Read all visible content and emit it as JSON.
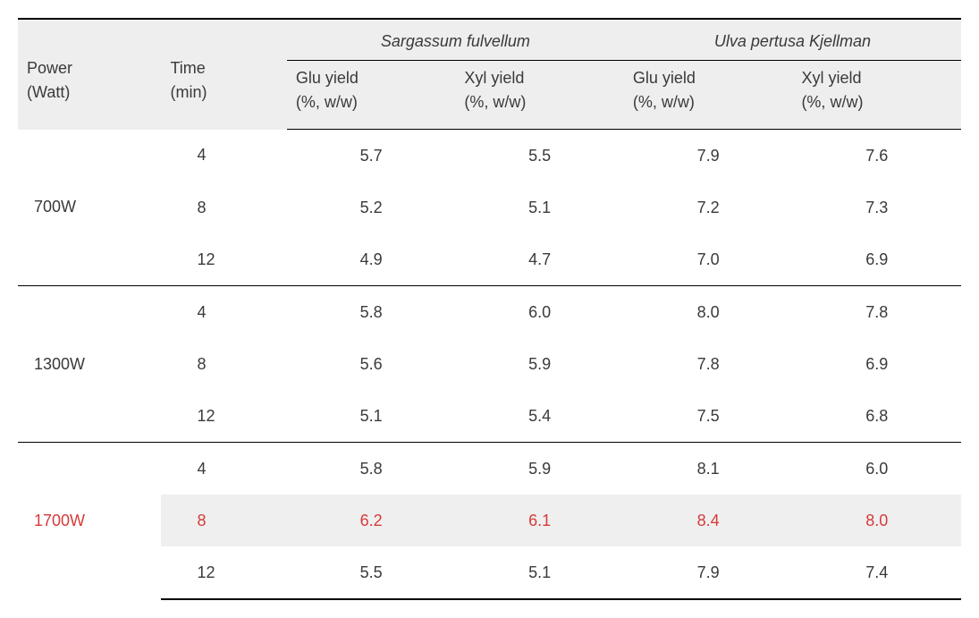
{
  "table": {
    "header": {
      "power_label_line1": "Power",
      "power_label_line2": "(Watt)",
      "time_label_line1": "Time",
      "time_label_line2": "(min)",
      "species": [
        {
          "name": "Sargassum fulvellum"
        },
        {
          "name": "Ulva pertusa Kjellman"
        }
      ],
      "sub_glu_line1": "Glu yield",
      "sub_glu_line2": "(%, w/w)",
      "sub_xyl_line1": "Xyl yield",
      "sub_xyl_line2": "(%, w/w)"
    },
    "groups": [
      {
        "power": "700W",
        "power_color": "#3a3a3a",
        "rows": [
          {
            "time": "4",
            "sf_glu": "5.7",
            "sf_xyl": "5.5",
            "up_glu": "7.9",
            "up_xyl": "7.6",
            "highlight": false
          },
          {
            "time": "8",
            "sf_glu": "5.2",
            "sf_xyl": "5.1",
            "up_glu": "7.2",
            "up_xyl": "7.3",
            "highlight": false
          },
          {
            "time": "12",
            "sf_glu": "4.9",
            "sf_xyl": "4.7",
            "up_glu": "7.0",
            "up_xyl": "6.9",
            "highlight": false
          }
        ]
      },
      {
        "power": "1300W",
        "power_color": "#3a3a3a",
        "rows": [
          {
            "time": "4",
            "sf_glu": "5.8",
            "sf_xyl": "6.0",
            "up_glu": "8.0",
            "up_xyl": "7.8",
            "highlight": false
          },
          {
            "time": "8",
            "sf_glu": "5.6",
            "sf_xyl": "5.9",
            "up_glu": "7.8",
            "up_xyl": "6.9",
            "highlight": false
          },
          {
            "time": "12",
            "sf_glu": "5.1",
            "sf_xyl": "5.4",
            "up_glu": "7.5",
            "up_xyl": "6.8",
            "highlight": false
          }
        ]
      },
      {
        "power": "1700W",
        "power_color": "#d63a3a",
        "rows": [
          {
            "time": "4",
            "sf_glu": "5.8",
            "sf_xyl": "5.9",
            "up_glu": "8.1",
            "up_xyl": "6.0",
            "highlight": false
          },
          {
            "time": "8",
            "sf_glu": "6.2",
            "sf_xyl": "6.1",
            "up_glu": "8.4",
            "up_xyl": "8.0",
            "highlight": true
          },
          {
            "time": "12",
            "sf_glu": "5.5",
            "sf_xyl": "5.1",
            "up_glu": "7.9",
            "up_xyl": "7.4",
            "highlight": false
          }
        ]
      }
    ],
    "colors": {
      "text": "#3a3a3a",
      "highlight_text": "#d63a3a",
      "header_bg": "#eeeeee",
      "highlight_bg": "#efefef",
      "border": "#000000"
    }
  }
}
